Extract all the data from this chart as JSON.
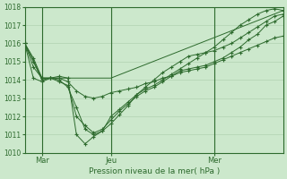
{
  "background_color": "#cce8cc",
  "plot_bg_color": "#cce8cc",
  "line_color": "#2d6a2d",
  "grid_color": "#aaccaa",
  "axis_color": "#2d6a2d",
  "xlabel": "Pression niveau de la mer( hPa )",
  "ylim": [
    1010,
    1018
  ],
  "yticks": [
    1010,
    1011,
    1012,
    1013,
    1014,
    1015,
    1016,
    1017,
    1018
  ],
  "xlim": [
    0,
    30
  ],
  "vline_positions": [
    2,
    10,
    22
  ],
  "vline_labels": [
    "Mar",
    "Jeu",
    "Mer"
  ],
  "series": [
    {
      "x": [
        0,
        1,
        2,
        3,
        4,
        5,
        6,
        7,
        8,
        9,
        10,
        11,
        12,
        13,
        14,
        15,
        16,
        17,
        18,
        19,
        20,
        21,
        22,
        23,
        24,
        25,
        26,
        27,
        28,
        29,
        30
      ],
      "y": [
        1016.0,
        1015.2,
        1014.1,
        1014.1,
        1014.2,
        1014.1,
        1011.0,
        1010.5,
        1010.9,
        1011.2,
        1012.0,
        1012.4,
        1012.8,
        1013.2,
        1013.5,
        1013.7,
        1014.0,
        1014.3,
        1014.6,
        1014.9,
        1015.2,
        1015.5,
        1015.8,
        1016.2,
        1016.6,
        1017.0,
        1017.3,
        1017.6,
        1017.8,
        1017.9,
        1017.8
      ]
    },
    {
      "x": [
        0,
        1,
        2,
        3,
        4,
        5,
        6,
        7,
        8,
        9,
        10,
        11,
        12,
        13,
        14,
        15,
        16,
        17,
        18,
        19,
        20,
        21,
        22,
        23,
        24,
        25,
        26,
        27,
        28,
        29,
        30
      ],
      "y": [
        1016.0,
        1014.7,
        1014.1,
        1014.1,
        1014.0,
        1013.6,
        1012.5,
        1011.3,
        1011.0,
        1011.2,
        1011.6,
        1012.1,
        1012.6,
        1013.2,
        1013.6,
        1014.0,
        1014.4,
        1014.7,
        1015.0,
        1015.3,
        1015.4,
        1015.5,
        1015.6,
        1015.8,
        1016.0,
        1016.3,
        1016.6,
        1016.9,
        1017.2,
        1017.5,
        1017.6
      ]
    },
    {
      "x": [
        0,
        1,
        2,
        3,
        4,
        5,
        6,
        7,
        8,
        9,
        10,
        11,
        12,
        13,
        14,
        15,
        16,
        17,
        18,
        19,
        20,
        21,
        22,
        23,
        24,
        25,
        26,
        27,
        28,
        29,
        30
      ],
      "y": [
        1016.0,
        1014.1,
        1013.9,
        1014.1,
        1013.9,
        1013.7,
        1012.0,
        1011.5,
        1011.1,
        1011.3,
        1011.8,
        1012.3,
        1012.7,
        1013.1,
        1013.4,
        1013.6,
        1013.9,
        1014.2,
        1014.5,
        1014.6,
        1014.7,
        1014.8,
        1015.0,
        1015.2,
        1015.5,
        1015.8,
        1016.2,
        1016.5,
        1017.0,
        1017.2,
        1017.5
      ]
    },
    {
      "x": [
        0,
        1,
        2,
        3,
        4,
        5,
        6,
        7,
        8,
        9,
        10,
        11,
        12,
        13,
        14,
        15,
        16,
        17,
        18,
        19,
        20,
        21,
        22,
        23,
        24,
        25,
        26,
        27,
        28,
        29,
        30
      ],
      "y": [
        1016.0,
        1015.0,
        1014.0,
        1014.1,
        1014.1,
        1013.9,
        1013.4,
        1013.1,
        1013.0,
        1013.1,
        1013.3,
        1013.4,
        1013.5,
        1013.6,
        1013.8,
        1013.9,
        1014.1,
        1014.2,
        1014.4,
        1014.5,
        1014.6,
        1014.7,
        1014.9,
        1015.1,
        1015.3,
        1015.5,
        1015.7,
        1015.9,
        1016.1,
        1016.3,
        1016.4
      ]
    },
    {
      "x": [
        0,
        2,
        10,
        30
      ],
      "y": [
        1016.0,
        1014.1,
        1014.1,
        1017.8
      ]
    }
  ]
}
